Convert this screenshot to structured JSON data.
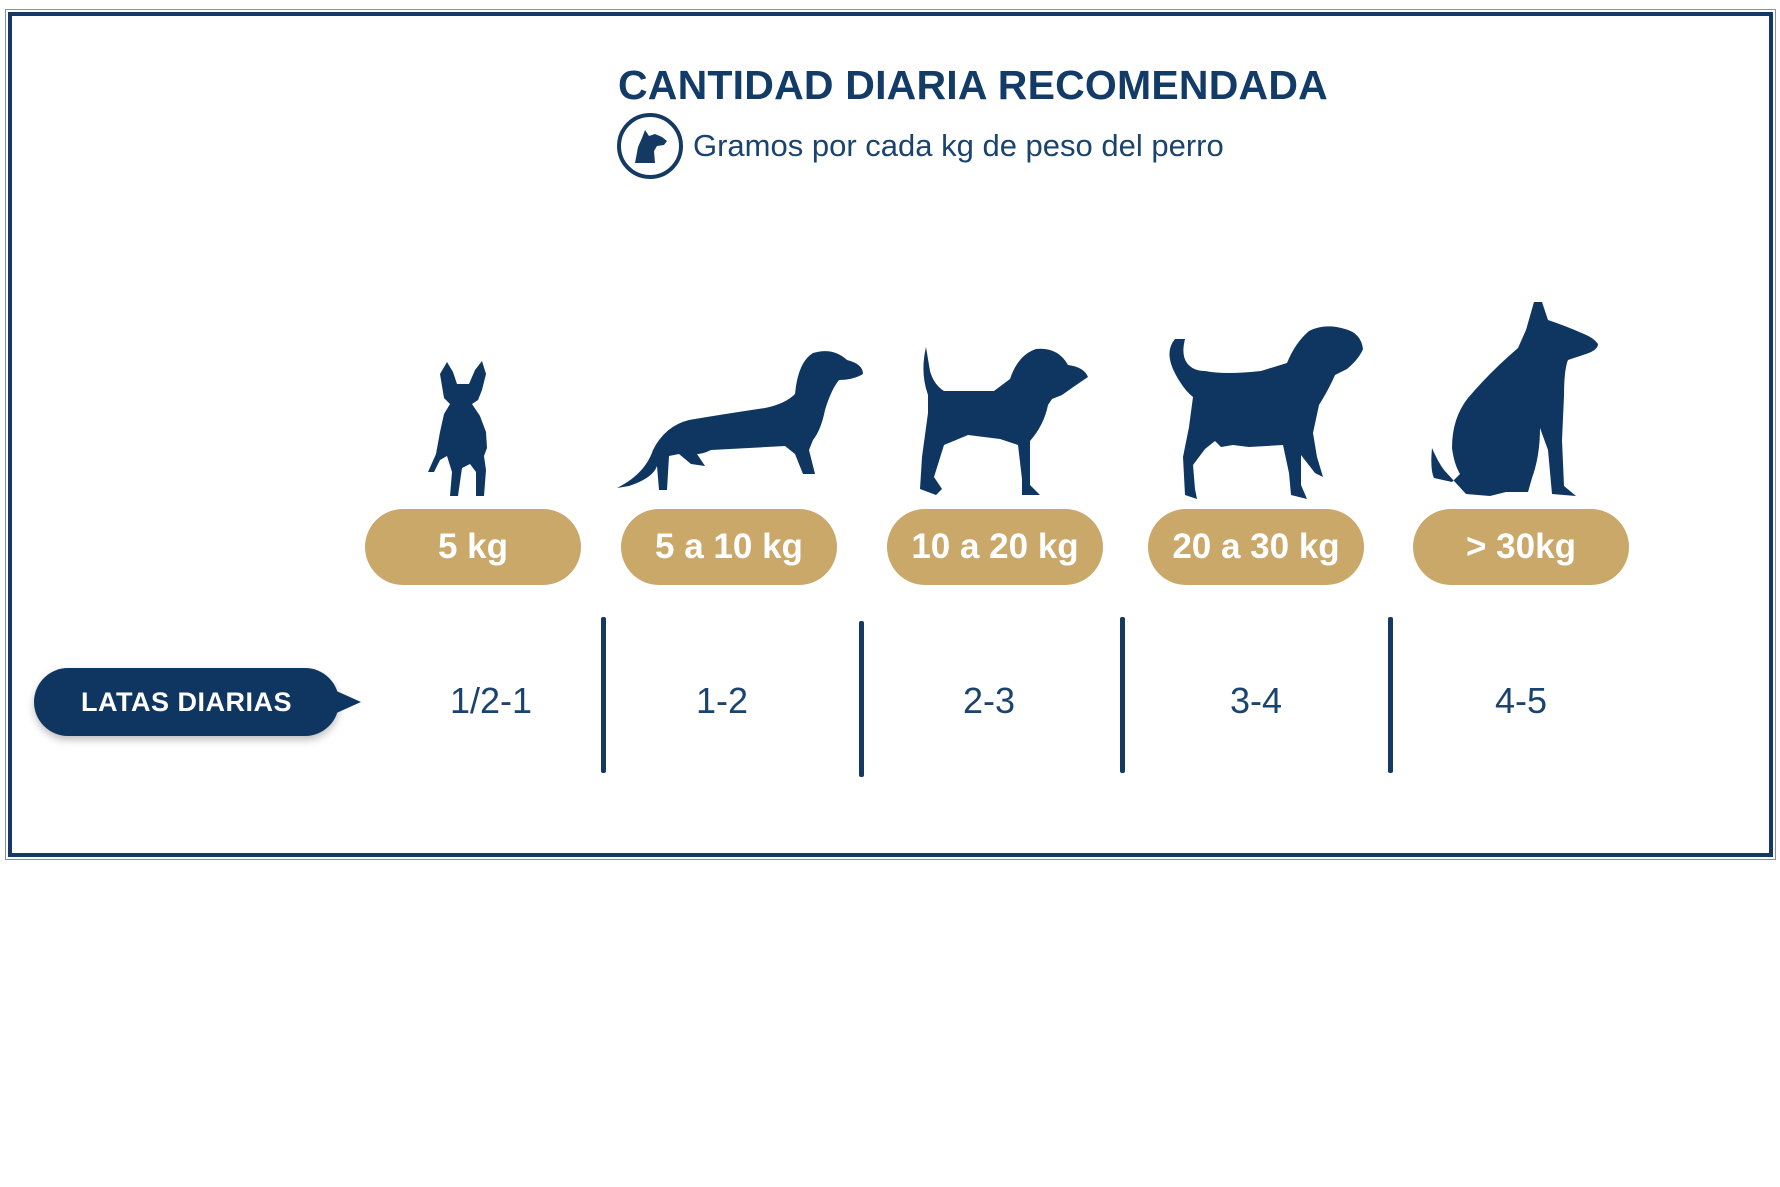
{
  "title": "CANTIDAD DIARIA RECOMENDADA",
  "subtitle": "Gramos por cada kg de peso del perro",
  "subtitle_icon": "dog-head-icon",
  "row_label": "LATAS DIARIAS",
  "colors": {
    "navy": "#0f3660",
    "gold": "#c9a86a",
    "white": "#ffffff"
  },
  "columns": [
    {
      "weight": "5 kg",
      "cans": "1/2-1",
      "icon": "french-bulldog-icon"
    },
    {
      "weight": "5 a 10 kg",
      "cans": "1-2",
      "icon": "dachshund-icon"
    },
    {
      "weight": "10 a 20 kg",
      "cans": "2-3",
      "icon": "beagle-icon"
    },
    {
      "weight": "20 a 30 kg",
      "cans": "3-4",
      "icon": "hound-icon"
    },
    {
      "weight": "> 30kg",
      "cans": "4-5",
      "icon": "sitting-dog-icon"
    }
  ]
}
